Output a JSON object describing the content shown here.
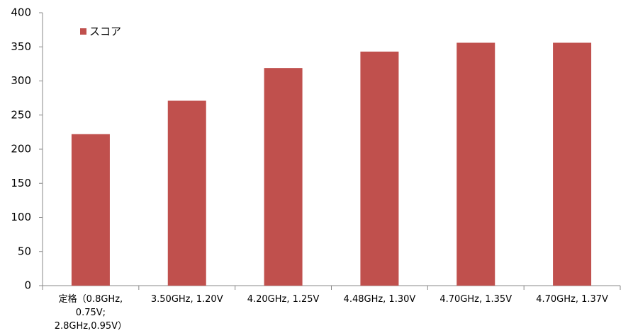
{
  "chart_data": {
    "type": "bar",
    "categories": [
      "定格（0.8GHz, 0.75V; 2.8GHz,0.95V）",
      "3.50GHz, 1.20V",
      "4.20GHz, 1.25V",
      "4.48GHz, 1.30V",
      "4.70GHz, 1.35V",
      "4.70GHz, 1.37V"
    ],
    "series": [
      {
        "name": "スコア",
        "color": "#c0504d",
        "values": [
          222,
          271,
          319,
          343,
          356,
          356
        ]
      }
    ],
    "ylim": [
      0,
      400
    ],
    "yticks": [
      0,
      50,
      100,
      150,
      200,
      250,
      300,
      350,
      400
    ],
    "grid": false,
    "legend": "top-left"
  }
}
